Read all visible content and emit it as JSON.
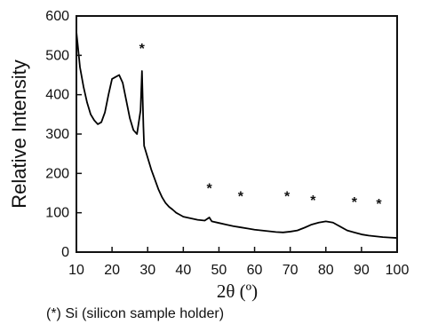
{
  "chart_data": {
    "type": "line",
    "xlabel": "2θ (º)",
    "ylabel": "Relative Intensity",
    "xlim": [
      10,
      100
    ],
    "ylim": [
      0,
      600
    ],
    "xticks": [
      "10",
      "20",
      "30",
      "40",
      "50",
      "60",
      "70",
      "80",
      "90",
      "100"
    ],
    "yticks": [
      "0",
      "100",
      "200",
      "300",
      "400",
      "500",
      "600"
    ],
    "grid": false,
    "annotation": "(*) Si (silicon sample holder)",
    "silicon_marker_symbol": "*",
    "silicon_peaks": [
      {
        "x": 28.4,
        "y": 505
      },
      {
        "x": 47.3,
        "y": 150
      },
      {
        "x": 56.1,
        "y": 130
      },
      {
        "x": 69.1,
        "y": 130
      },
      {
        "x": 76.4,
        "y": 120
      },
      {
        "x": 88.0,
        "y": 115
      },
      {
        "x": 94.9,
        "y": 110
      }
    ],
    "series": [
      {
        "color": "#000000",
        "x": [
          10,
          11,
          12,
          13,
          14,
          15,
          16,
          17,
          18,
          19,
          20,
          21,
          22,
          23,
          24,
          25,
          26,
          27,
          28,
          28.4,
          28.8,
          29,
          30,
          31,
          32,
          33,
          34,
          35,
          36,
          37,
          38,
          39,
          40,
          42,
          44,
          46,
          47.3,
          48,
          50,
          52,
          54,
          56,
          58,
          60,
          62,
          64,
          66,
          68,
          70,
          72,
          74,
          76,
          78,
          80,
          82,
          84,
          86,
          88,
          90,
          92,
          94,
          96,
          98,
          100
        ],
        "y": [
          560,
          470,
          420,
          380,
          350,
          335,
          325,
          330,
          355,
          400,
          440,
          445,
          450,
          430,
          385,
          340,
          310,
          300,
          360,
          460,
          320,
          270,
          240,
          210,
          185,
          160,
          140,
          125,
          115,
          108,
          100,
          95,
          90,
          86,
          82,
          80,
          88,
          78,
          74,
          70,
          66,
          63,
          60,
          57,
          55,
          53,
          51,
          50,
          52,
          55,
          62,
          70,
          75,
          78,
          75,
          65,
          55,
          50,
          45,
          42,
          40,
          38,
          37,
          36
        ]
      }
    ]
  }
}
